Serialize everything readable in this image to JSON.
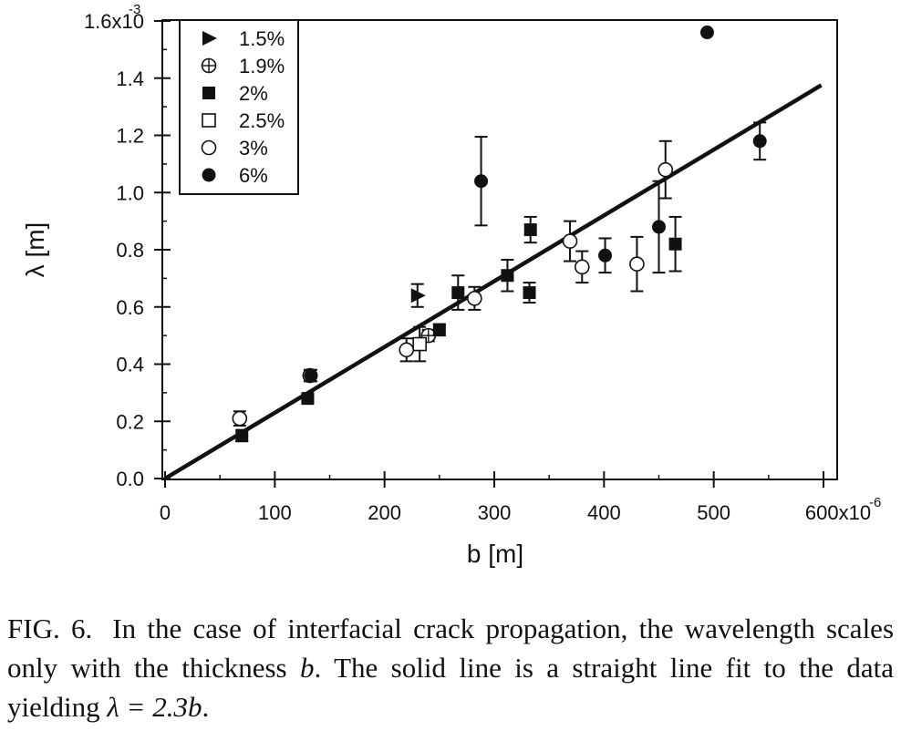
{
  "chart_data": {
    "type": "scatter",
    "xlabel": "b [m]",
    "ylabel": "λ [m]",
    "xlim": [
      0,
      600
    ],
    "ylim": [
      0.0,
      1.6
    ],
    "x_unit_exponent": "-6",
    "y_unit_exponent": "-3",
    "x_ticks": [
      "0",
      "100",
      "200",
      "300",
      "400",
      "500",
      "600x10"
    ],
    "y_ticks": [
      "0.0",
      "0.2",
      "0.4",
      "0.6",
      "0.8",
      "1.0",
      "1.2",
      "1.4",
      "1.6x10"
    ],
    "legend_position": "top-left",
    "series": [
      {
        "name": "1.5%",
        "marker": "triangle-right-filled",
        "points": [
          {
            "x": 230,
            "y": 0.64,
            "err": 0.04
          }
        ]
      },
      {
        "name": "1.9%",
        "marker": "circle-plus",
        "points": [
          {
            "x": 132,
            "y": 0.36,
            "err": 0.02
          },
          {
            "x": 240,
            "y": 0.5,
            "err": 0.02
          }
        ]
      },
      {
        "name": "2%",
        "marker": "square-filled",
        "points": [
          {
            "x": 70,
            "y": 0.15,
            "err": 0.02
          },
          {
            "x": 130,
            "y": 0.28,
            "err": 0.01
          },
          {
            "x": 250,
            "y": 0.52,
            "err": 0.02
          },
          {
            "x": 267,
            "y": 0.65,
            "err": 0.06
          },
          {
            "x": 312,
            "y": 0.71,
            "err": 0.055
          },
          {
            "x": 333,
            "y": 0.87,
            "err": 0.045
          },
          {
            "x": 332,
            "y": 0.65,
            "err": 0.035
          },
          {
            "x": 465,
            "y": 0.82,
            "err": 0.095
          }
        ]
      },
      {
        "name": "2.5%",
        "marker": "square-open",
        "points": [
          {
            "x": 232,
            "y": 0.47,
            "err": 0.06
          }
        ]
      },
      {
        "name": "3%",
        "marker": "circle-open",
        "points": [
          {
            "x": 68,
            "y": 0.21,
            "err": 0.025
          },
          {
            "x": 220,
            "y": 0.45,
            "err": 0.04
          },
          {
            "x": 282,
            "y": 0.63,
            "err": 0.04
          },
          {
            "x": 369,
            "y": 0.83,
            "err": 0.07
          },
          {
            "x": 380,
            "y": 0.74,
            "err": 0.055
          },
          {
            "x": 430,
            "y": 0.75,
            "err": 0.095
          },
          {
            "x": 456,
            "y": 1.08,
            "err": 0.1
          }
        ]
      },
      {
        "name": "6%",
        "marker": "circle-filled",
        "points": [
          {
            "x": 133,
            "y": 0.36,
            "err": 0.02
          },
          {
            "x": 288,
            "y": 1.04,
            "err": 0.155
          },
          {
            "x": 401,
            "y": 0.78,
            "err": 0.06
          },
          {
            "x": 450,
            "y": 0.88,
            "err": 0.16
          },
          {
            "x": 494,
            "y": 1.56,
            "err": 0
          },
          {
            "x": 542,
            "y": 1.18,
            "err": 0.065
          }
        ]
      }
    ],
    "fit_line": {
      "slope": 0.0023,
      "intercept": 0.0,
      "x_range": [
        0,
        600
      ]
    }
  },
  "caption": {
    "label": "FIG. 6.",
    "text_before": "In the case of interfacial crack propagation, the wavelength scales only with the thickness ",
    "var_b": "b",
    "text_mid": ". The solid line is a straight line fit to the data yielding ",
    "equation": "λ = 2.3b",
    "text_end": "."
  }
}
